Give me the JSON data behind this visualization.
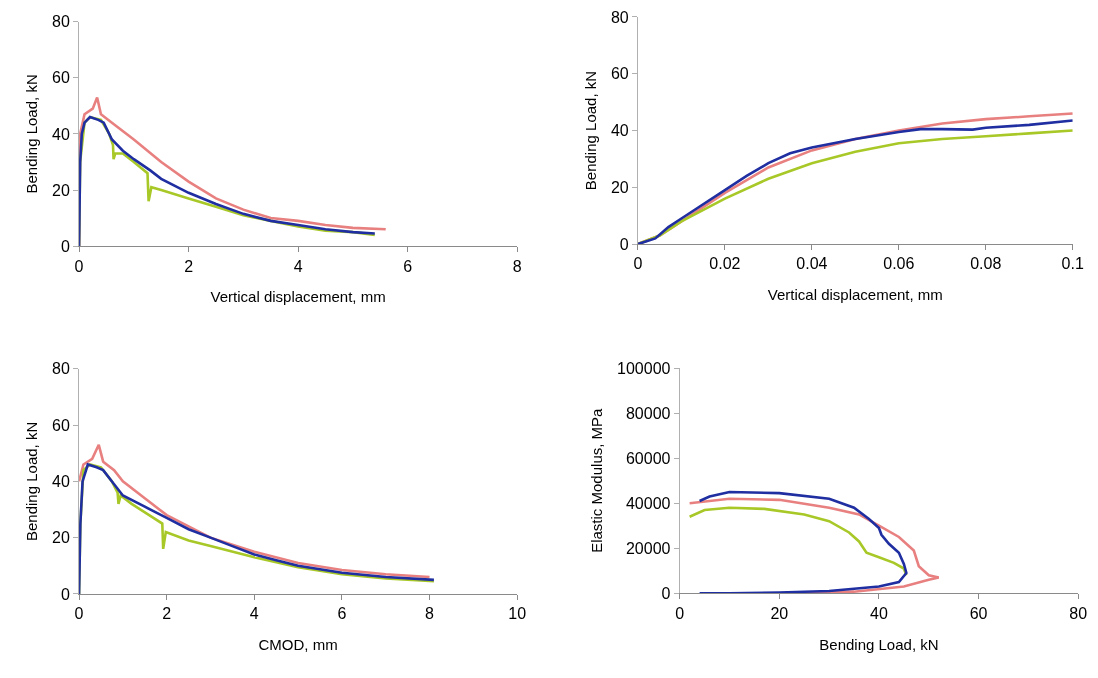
{
  "chart_data": [
    {
      "type": "line",
      "xlabel": "Vertical displacement, mm",
      "ylabel": "Bending Load, kN",
      "xlim": [
        0,
        8
      ],
      "xticks": [
        0,
        2,
        4,
        6,
        8
      ],
      "ylim": [
        0,
        80
      ],
      "yticks": [
        0,
        20,
        40,
        60,
        80
      ],
      "marker": "none",
      "series": [
        {
          "color": "#e88080",
          "x": [
            0,
            0.02,
            0.1,
            0.25,
            0.33,
            0.4,
            0.6,
            1,
            1.5,
            2,
            2.5,
            3,
            3.5,
            4,
            4.5,
            5,
            5.6
          ],
          "values": [
            0,
            40,
            47,
            49,
            53,
            47,
            44,
            38,
            30,
            23,
            17,
            13,
            10,
            9,
            7.5,
            6.5,
            6
          ]
        },
        {
          "color": "#a8c828",
          "x": [
            0,
            0.02,
            0.1,
            0.2,
            0.4,
            0.55,
            0.62,
            0.63,
            0.66,
            0.8,
            1,
            1.25,
            1.27,
            1.32,
            1.5,
            2,
            2.5,
            3,
            3.5,
            4,
            4.5,
            5,
            5.4
          ],
          "values": [
            0,
            30,
            44,
            46,
            45,
            40,
            36,
            31,
            33,
            33,
            30,
            26,
            16,
            21,
            20,
            17,
            14,
            11,
            9,
            7,
            5.5,
            5,
            4
          ]
        },
        {
          "color": "#1f2ea0",
          "x": [
            0,
            0.02,
            0.05,
            0.1,
            0.2,
            0.35,
            0.45,
            0.6,
            0.8,
            1,
            1.3,
            1.5,
            2,
            2.5,
            3,
            3.5,
            4,
            4.5,
            5,
            5.4
          ],
          "values": [
            0,
            30,
            40,
            44,
            46,
            45,
            44,
            38,
            34,
            31,
            27,
            24,
            19,
            15,
            11.5,
            9,
            7.5,
            6,
            5,
            4.5
          ]
        }
      ]
    },
    {
      "type": "line",
      "xlabel": "Vertical displacement, mm",
      "ylabel": "Bending Load, kN",
      "xlim": [
        0,
        0.1
      ],
      "xticks": [
        0,
        0.02,
        0.04,
        0.06,
        0.08,
        0.1
      ],
      "ylim": [
        0,
        80
      ],
      "yticks": [
        0,
        20,
        40,
        60,
        80
      ],
      "marker": "none",
      "series": [
        {
          "color": "#e88080",
          "x": [
            0,
            0.005,
            0.01,
            0.02,
            0.03,
            0.04,
            0.05,
            0.06,
            0.07,
            0.08,
            0.09,
            0.1
          ],
          "values": [
            0,
            3,
            8,
            18,
            27,
            33,
            37,
            40,
            42.5,
            44,
            45,
            46
          ]
        },
        {
          "color": "#a8c828",
          "x": [
            0,
            0.005,
            0.01,
            0.02,
            0.03,
            0.04,
            0.05,
            0.06,
            0.07,
            0.08,
            0.09,
            0.1
          ],
          "values": [
            0,
            3,
            8,
            16,
            23,
            28.5,
            32.5,
            35.5,
            37,
            38,
            39,
            40
          ]
        },
        {
          "color": "#1f2ea0",
          "x": [
            0,
            0.004,
            0.007,
            0.01,
            0.02,
            0.025,
            0.03,
            0.035,
            0.04,
            0.05,
            0.06,
            0.065,
            0.07,
            0.077,
            0.08,
            0.09,
            0.1
          ],
          "values": [
            0,
            2,
            6,
            9,
            19,
            24,
            28.5,
            32,
            34,
            37,
            39.5,
            40.5,
            40.5,
            40.3,
            41,
            42,
            43.5
          ]
        }
      ]
    },
    {
      "type": "line",
      "xlabel": "CMOD, mm",
      "ylabel": "Bending Load, kN",
      "xlim": [
        0,
        10
      ],
      "xticks": [
        0,
        2,
        4,
        6,
        8,
        10
      ],
      "ylim": [
        0,
        80
      ],
      "yticks": [
        0,
        20,
        40,
        60,
        80
      ],
      "marker": "none",
      "series": [
        {
          "color": "#e88080",
          "x": [
            0,
            0.1,
            0.3,
            0.45,
            0.55,
            0.8,
            1,
            1.5,
            2,
            3,
            4,
            5,
            6,
            7,
            8
          ],
          "values": [
            40,
            46,
            48,
            53,
            47,
            44,
            40,
            34,
            28,
            20,
            15,
            11,
            8.5,
            7,
            6
          ]
        },
        {
          "color": "#a8c828",
          "x": [
            0,
            0.03,
            0.1,
            0.25,
            0.5,
            0.75,
            0.88,
            0.9,
            0.95,
            1.2,
            1.6,
            1.9,
            1.92,
            1.98,
            2.5,
            3,
            4,
            5,
            6,
            7,
            8.1
          ],
          "values": [
            0,
            25,
            44,
            46,
            45,
            40,
            36,
            32,
            35,
            32,
            28,
            25,
            16,
            22,
            19,
            17,
            13,
            9.5,
            7,
            5.5,
            4.5
          ]
        },
        {
          "color": "#1f2ea0",
          "x": [
            0,
            0.03,
            0.08,
            0.2,
            0.4,
            0.55,
            0.8,
            1,
            1.5,
            2,
            2.5,
            3,
            3.5,
            4,
            4.5,
            5,
            6,
            7,
            8.1
          ],
          "values": [
            0,
            25,
            40,
            46,
            45,
            44,
            39,
            35,
            31,
            27,
            23,
            20,
            17,
            14,
            12,
            10,
            7.5,
            6,
            5
          ]
        }
      ]
    },
    {
      "type": "line",
      "xlabel": "Bending Load, kN",
      "ylabel": "Elastic Modulus, MPa",
      "xlim": [
        0,
        80
      ],
      "xticks": [
        0,
        20,
        40,
        60,
        80
      ],
      "ylim": [
        0,
        100000
      ],
      "yticks": [
        0,
        20000,
        40000,
        60000,
        80000,
        100000
      ],
      "marker": "none",
      "series": [
        {
          "color": "#e88080",
          "x": [
            2,
            10,
            20,
            30,
            36,
            40,
            44,
            47,
            48,
            50,
            52,
            50,
            45,
            35,
            20,
            5
          ],
          "values": [
            40000,
            42000,
            41500,
            38000,
            35000,
            30000,
            25000,
            19000,
            12000,
            8000,
            7000,
            6000,
            3000,
            700,
            0,
            0
          ]
        },
        {
          "color": "#a8c828",
          "x": [
            2,
            5,
            10,
            17,
            25,
            30,
            34,
            36,
            37.5,
            40,
            43,
            45,
            45.5
          ],
          "values": [
            34000,
            37000,
            38000,
            37500,
            35000,
            32000,
            27000,
            23000,
            18000,
            16000,
            13500,
            11000,
            8000
          ]
        },
        {
          "color": "#1f2ea0",
          "x": [
            4,
            6,
            10,
            20,
            30,
            35,
            38,
            40,
            40.5,
            42,
            44,
            45,
            45.5,
            44,
            40,
            30,
            20,
            10,
            4
          ],
          "values": [
            41000,
            43000,
            45000,
            44500,
            42000,
            38000,
            33000,
            29000,
            26000,
            22000,
            18000,
            13000,
            9000,
            5000,
            3000,
            1000,
            300,
            0,
            0
          ]
        }
      ]
    }
  ]
}
